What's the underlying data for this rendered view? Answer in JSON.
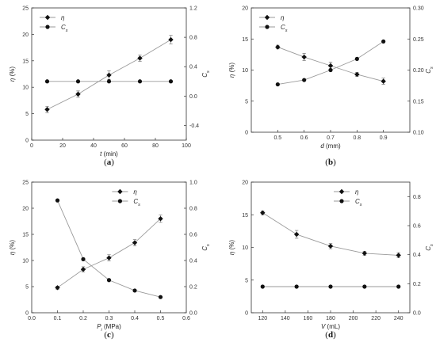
{
  "chart_data": [
    {
      "type": "line",
      "panel_label": "(a)",
      "xlabel": {
        "symbol": "t",
        "unit": " (min)"
      },
      "ylabel_left": {
        "symbol": "η",
        "unit": " (%)"
      },
      "ylabel_right": {
        "symbol": "C",
        "sub": "s"
      },
      "xlim": [
        0,
        100
      ],
      "xticks": [
        0,
        20,
        40,
        60,
        80,
        100
      ],
      "ylim_left": [
        0,
        25
      ],
      "yticks_left": [
        0,
        5,
        10,
        15,
        20,
        25
      ],
      "ylim_right": [
        -0.6,
        1.2
      ],
      "yticks_right": [
        -0.4,
        0.0,
        0.4,
        0.8,
        1.2
      ],
      "legend": {
        "position": "top-left",
        "entries": [
          {
            "symbol": "η",
            "sub": "",
            "marker": "diamond"
          },
          {
            "symbol": "C",
            "sub": "s",
            "marker": "circle"
          }
        ]
      },
      "series": [
        {
          "marker": "diamond",
          "axis": "left",
          "x": [
            10,
            30,
            50,
            70,
            90
          ],
          "y": [
            5.8,
            8.7,
            12.3,
            15.5,
            19.0
          ],
          "err": [
            0.6,
            0.6,
            0.8,
            0.6,
            0.8
          ]
        },
        {
          "marker": "circle",
          "axis": "right",
          "x": [
            10,
            30,
            50,
            70,
            90
          ],
          "y": [
            0.2,
            0.2,
            0.2,
            0.2,
            0.2
          ]
        }
      ]
    },
    {
      "type": "line",
      "panel_label": "(b)",
      "xlabel": {
        "symbol": "d",
        "unit": " (mm)"
      },
      "ylabel_left": {
        "symbol": "η",
        "unit": " (%)"
      },
      "ylabel_right": {
        "symbol": "C",
        "sub": "s"
      },
      "xlim": [
        0.4,
        1.0
      ],
      "xticks": [
        0.5,
        0.6,
        0.7,
        0.8,
        0.9
      ],
      "ylim_left": [
        0,
        20
      ],
      "yticks_left": [
        0,
        5,
        10,
        15,
        20
      ],
      "ylim_right": [
        0.1,
        0.3
      ],
      "yticks_right": [
        0.1,
        0.15,
        0.2,
        0.25,
        0.3
      ],
      "legend": {
        "position": "top-left",
        "entries": [
          {
            "symbol": "η",
            "sub": "",
            "marker": "diamond"
          },
          {
            "symbol": "C",
            "sub": "s",
            "marker": "circle"
          }
        ]
      },
      "series": [
        {
          "marker": "diamond",
          "axis": "left",
          "x": [
            0.5,
            0.6,
            0.7,
            0.8,
            0.9
          ],
          "y": [
            13.7,
            12.1,
            10.7,
            9.3,
            8.2
          ],
          "err": [
            0.3,
            0.6,
            0.6,
            0.3,
            0.5
          ]
        },
        {
          "marker": "circle",
          "axis": "right",
          "x": [
            0.5,
            0.6,
            0.7,
            0.8,
            0.9
          ],
          "y": [
            0.177,
            0.184,
            0.2,
            0.218,
            0.246
          ]
        }
      ]
    },
    {
      "type": "line",
      "panel_label": "(c)",
      "xlabel": {
        "symbol": "P",
        "sub": "i",
        "unit": " (MPa)"
      },
      "ylabel_left": {
        "symbol": "η",
        "unit": " (%)"
      },
      "ylabel_right": {
        "symbol": "C",
        "sub": "s"
      },
      "xlim": [
        0.0,
        0.6
      ],
      "xticks": [
        0.0,
        0.1,
        0.2,
        0.3,
        0.4,
        0.5,
        0.6
      ],
      "ylim_left": [
        0,
        25
      ],
      "yticks_left": [
        0,
        5,
        10,
        15,
        20,
        25
      ],
      "ylim_right": [
        0.0,
        1.0
      ],
      "yticks_right": [
        0.0,
        0.2,
        0.4,
        0.6,
        0.8,
        1.0
      ],
      "legend": {
        "position": "top-right",
        "entries": [
          {
            "symbol": "η",
            "sub": "",
            "marker": "diamond"
          },
          {
            "symbol": "C",
            "sub": "s",
            "marker": "circle"
          }
        ]
      },
      "series": [
        {
          "marker": "diamond",
          "axis": "left",
          "x": [
            0.1,
            0.2,
            0.3,
            0.4,
            0.5
          ],
          "y": [
            4.8,
            8.3,
            10.5,
            13.4,
            18.0
          ],
          "err": [
            0.3,
            0.5,
            0.6,
            0.6,
            0.7
          ]
        },
        {
          "marker": "circle",
          "axis": "right",
          "x": [
            0.1,
            0.2,
            0.3,
            0.4,
            0.5
          ],
          "y": [
            0.86,
            0.41,
            0.25,
            0.17,
            0.12
          ]
        }
      ]
    },
    {
      "type": "line",
      "panel_label": "(d)",
      "xlabel": {
        "symbol": "V",
        "unit": " (mL)"
      },
      "ylabel_left": {
        "symbol": "η",
        "unit": " (%)"
      },
      "ylabel_right": {
        "symbol": "C",
        "sub": "s"
      },
      "xlim": [
        110,
        250
      ],
      "xticks": [
        120,
        140,
        160,
        180,
        200,
        220,
        240
      ],
      "ylim_left": [
        0,
        20
      ],
      "yticks_left": [
        0,
        5,
        10,
        15,
        20
      ],
      "ylim_right": [
        0.0,
        0.9
      ],
      "yticks_right": [
        0.0,
        0.2,
        0.4,
        0.6,
        0.8
      ],
      "legend": {
        "position": "top-right",
        "entries": [
          {
            "symbol": "η",
            "sub": "",
            "marker": "diamond"
          },
          {
            "symbol": "C",
            "sub": "s",
            "marker": "circle"
          }
        ]
      },
      "series": [
        {
          "marker": "diamond",
          "axis": "left",
          "x": [
            120,
            150,
            180,
            210,
            240
          ],
          "y": [
            15.3,
            12.0,
            10.2,
            9.1,
            8.8
          ],
          "err": [
            0.3,
            0.6,
            0.4,
            0.3,
            0.4
          ]
        },
        {
          "marker": "circle",
          "axis": "right",
          "x": [
            120,
            150,
            180,
            210,
            240
          ],
          "y": [
            0.18,
            0.18,
            0.18,
            0.18,
            0.18
          ]
        }
      ]
    }
  ]
}
